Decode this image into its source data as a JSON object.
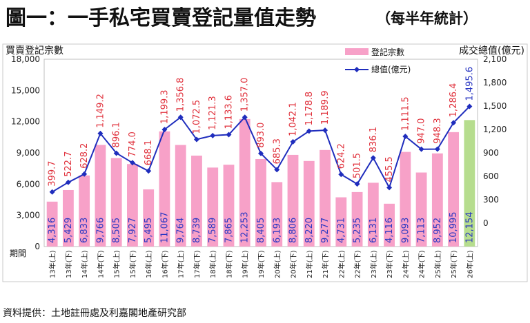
{
  "title_main": "圖一：一手私宅買賣登記量值走勢",
  "title_sub": "（每半年統計）",
  "source": "資料提供：土地註冊處及利嘉閣地產研究部",
  "colors": {
    "bar": "#f7a1c8",
    "bar_last": "#b6dd8e",
    "line": "#1f2dbd",
    "value_label": "#e0303b",
    "count_label": "#2a37c2",
    "frame": "#bfbfbf"
  },
  "chart_data": {
    "type": "bar",
    "categories": [
      "13年(上)",
      "13年(下)",
      "14年(上)",
      "14年(下)",
      "15年(上)",
      "15年(下)",
      "16年(上)",
      "16年(下)",
      "17年(上)",
      "17年(下)",
      "18年(上)",
      "18年(下)",
      "19年(上)",
      "19年(下)",
      "20年(上)",
      "20年(下)",
      "21年(上)",
      "21年(下)",
      "22年(上)",
      "22年(下)",
      "23年(上)",
      "23年(下)",
      "24年(上)",
      "24年(下)",
      "25年(上)",
      "25年(下)",
      "26年(上)"
    ],
    "x_axis_label": "期間",
    "y_left_label": "買賣登記宗數",
    "y_right_label": "成交總值(億元)",
    "y_left_range": [
      0,
      18000
    ],
    "y_left_ticks": [
      "0",
      "3,000",
      "6,000",
      "9,000",
      "12,000",
      "15,000",
      "18,000"
    ],
    "y_right_range": [
      -300,
      2100
    ],
    "y_right_ticks": [
      "0",
      "300",
      "600",
      "900",
      "1,200",
      "1,500",
      "1,800",
      "2,100"
    ],
    "legend_position": "top-right",
    "series": [
      {
        "name": "登記宗數",
        "kind": "bar",
        "values": [
          4316,
          5429,
          6833,
          9766,
          8505,
          7927,
          5495,
          11067,
          9764,
          8739,
          7589,
          7865,
          12253,
          8405,
          6193,
          8806,
          8220,
          9277,
          4731,
          5235,
          6131,
          4116,
          9093,
          7113,
          8952,
          10995,
          12154
        ],
        "labels": [
          "4,316",
          "5,429",
          "6,833",
          "9,766",
          "8,505",
          "7,927",
          "5,495",
          "11,067",
          "9,764",
          "8,739",
          "7,589",
          "7,865",
          "12,253",
          "8,405",
          "6,193",
          "8,806",
          "8,220",
          "9,277",
          "4,731",
          "5,235",
          "6,131",
          "4,116",
          "9,093",
          "7,113",
          "8,952",
          "10,995",
          "12,154"
        ]
      },
      {
        "name": "總值(億元)",
        "kind": "line",
        "values": [
          399.7,
          522.7,
          628.2,
          1149.2,
          896.1,
          774.0,
          668.1,
          1199.3,
          1356.8,
          1072.5,
          1121.3,
          1133.6,
          1357.0,
          893.0,
          685.3,
          1042.1,
          1178.8,
          1189.9,
          624.2,
          501.5,
          836.1,
          455.5,
          1111.5,
          947.0,
          948.3,
          1286.4,
          1495.6
        ],
        "labels": [
          "399.7",
          "522.7",
          "628.2",
          "1,149.2",
          "896.1",
          "774.0",
          "668.1",
          "1,199.3",
          "1,356.8",
          "1,072.5",
          "1,121.3",
          "1,133.6",
          "1,357.0",
          "893.0",
          "685.3",
          "1,042.1",
          "1,178.8",
          "1,189.9",
          "624.2",
          "501.5",
          "836.1",
          "455.5",
          "1,111.5",
          "947.0",
          "948.3",
          "1,286.4",
          "1,495.6"
        ]
      }
    ]
  }
}
